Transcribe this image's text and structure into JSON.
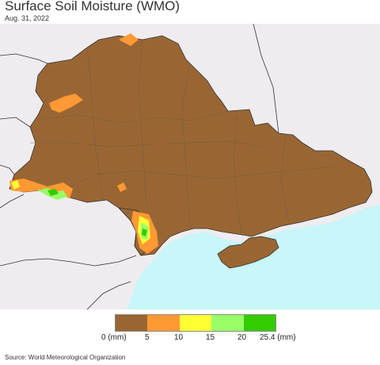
{
  "title": "Surface Soil Moisture (WMO)",
  "date": "Aug. 31, 2022",
  "source": "Source: World Meteorological Organization",
  "colors": {
    "background": "#efecef",
    "sea": "#c9f6f8",
    "land": "#996633",
    "border": "#333333"
  },
  "legend": {
    "bins": [
      {
        "color": "#996633"
      },
      {
        "color": "#ff9933"
      },
      {
        "color": "#ffff33"
      },
      {
        "color": "#99ff66"
      },
      {
        "color": "#33cc00"
      }
    ],
    "labels": [
      "0 (mm)",
      "5",
      "10",
      "15",
      "20",
      "25.4 (mm)"
    ]
  }
}
